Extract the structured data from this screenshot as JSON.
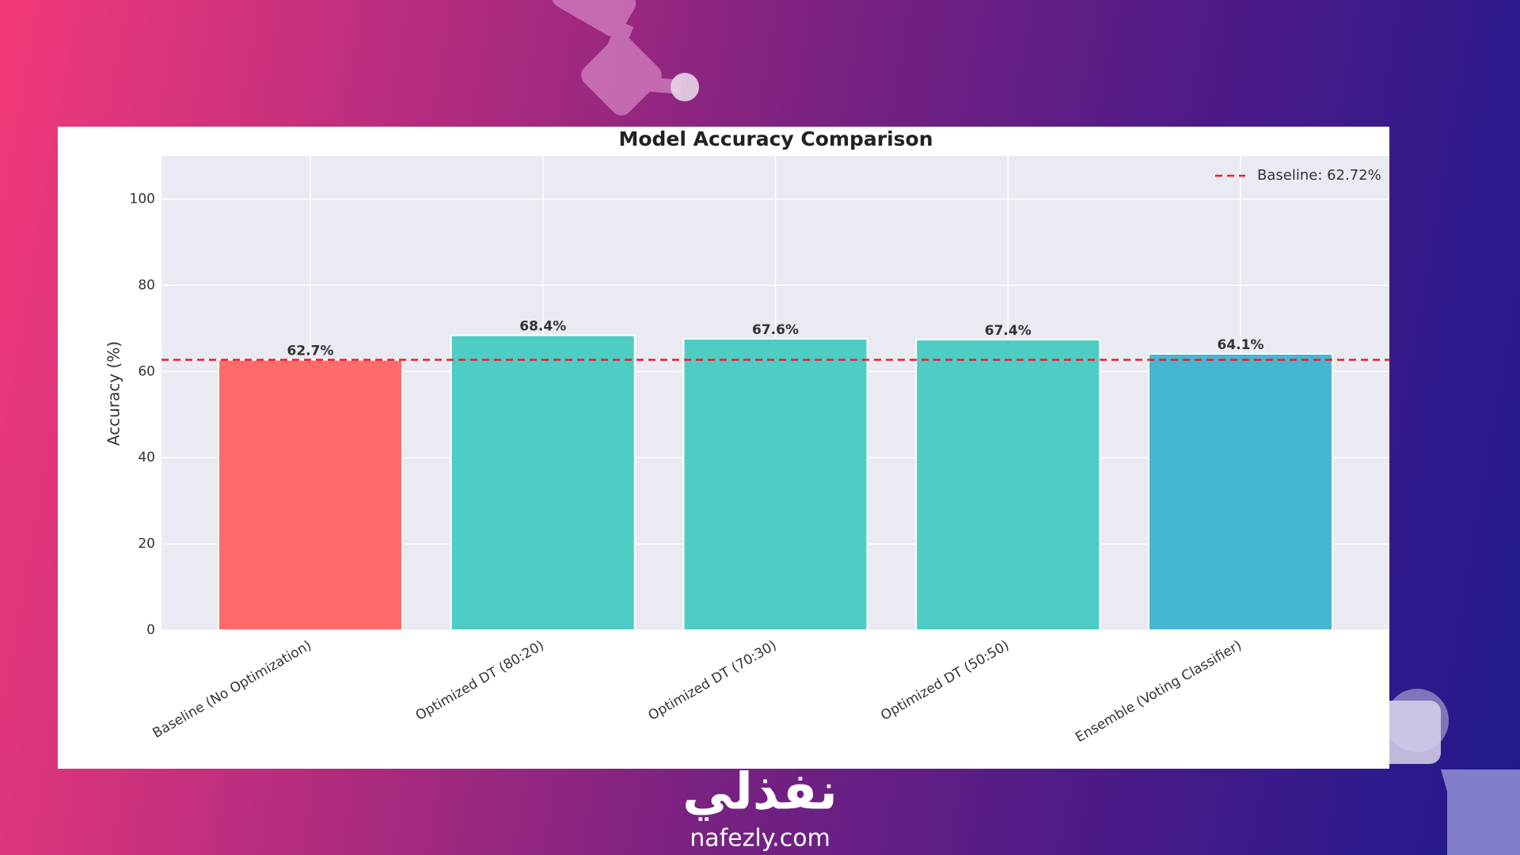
{
  "chart_data": {
    "type": "bar",
    "title": "Model Accuracy Comparison",
    "ylabel": "Accuracy (%)",
    "categories": [
      "Baseline (No Optimization)",
      "Optimized DT (80:20)",
      "Optimized DT (70:30)",
      "Optimized DT (50:50)",
      "Ensemble (Voting Classifier)"
    ],
    "values": [
      62.7,
      68.4,
      67.6,
      67.4,
      64.1
    ],
    "value_labels": [
      "62.7%",
      "68.4%",
      "67.6%",
      "67.4%",
      "64.1%"
    ],
    "colors": [
      "#ff6b6b",
      "#4ecdc4",
      "#4ecdc4",
      "#4ecdc4",
      "#45b7d1"
    ],
    "ylim": [
      0,
      110
    ],
    "yticks": [
      0,
      20,
      40,
      60,
      80,
      100
    ],
    "grid": true,
    "baseline": {
      "name": "Baseline: 62.72%",
      "value": 62.72,
      "color": "#e8202a"
    },
    "legend": "upper right"
  },
  "branding": {
    "logo": "نفذلي",
    "site": "nafezly.com"
  }
}
